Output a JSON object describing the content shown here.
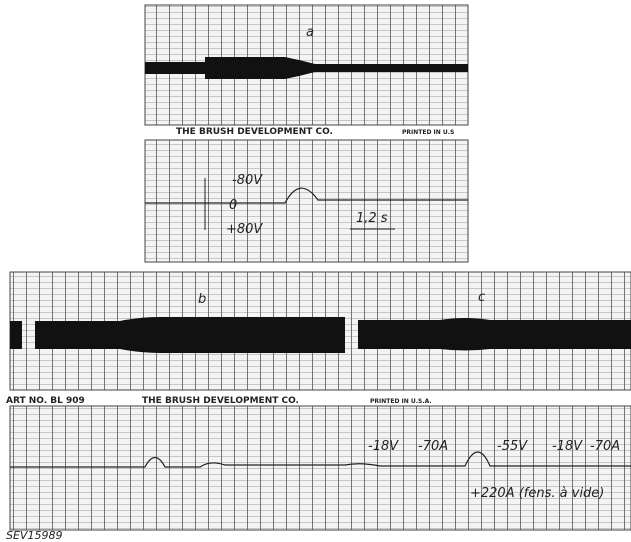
{
  "panel_a": {
    "label": "a",
    "footer": {
      "company": "THE BRUSH DEVELOPMENT CO.",
      "printed": "PRINTED IN U.S"
    }
  },
  "panel_a_trace": {
    "upper": "-80V",
    "zero": "0",
    "lower": "+80V",
    "time": "1,2 s"
  },
  "panel_bc": {
    "label_b": "b",
    "label_c": "c",
    "footer": {
      "art": "ART NO. BL 909",
      "company": "THE BRUSH DEVELOPMENT CO.",
      "printed": "PRINTED IN U.S.A."
    }
  },
  "panel_bc_trace": {
    "annotations": [
      "-18V",
      "-70A",
      "-55V",
      "-18V",
      "-70A",
      "+220A (fens. à vide)"
    ]
  },
  "caption": "SEV15989"
}
